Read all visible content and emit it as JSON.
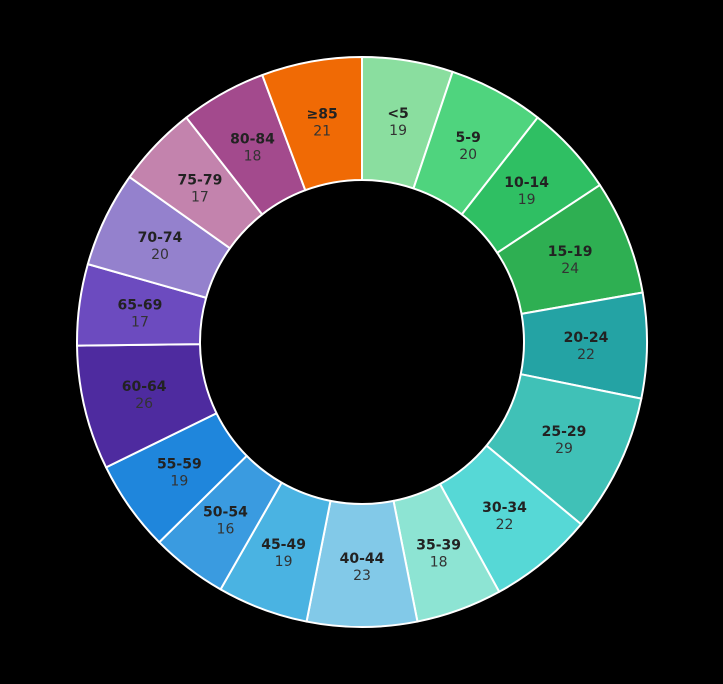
{
  "chart_data": {
    "type": "pie",
    "variant": "donut",
    "categories": [
      "<5",
      "5-9",
      "10-14",
      "15-19",
      "20-24",
      "25-29",
      "30-34",
      "35-39",
      "40-44",
      "45-49",
      "50-54",
      "55-59",
      "60-64",
      "65-69",
      "70-74",
      "75-79",
      "80-84",
      "≥85"
    ],
    "values": [
      19,
      20,
      19,
      24,
      22,
      29,
      22,
      18,
      23,
      19,
      16,
      19,
      26,
      17,
      20,
      17,
      18,
      21
    ],
    "colors": [
      "#8ade9f",
      "#4fd47e",
      "#2fbf63",
      "#2eaf52",
      "#24a3a4",
      "#40c1b7",
      "#56d8d6",
      "#8de4d3",
      "#82c9e8",
      "#4ab3e2",
      "#3a9be0",
      "#1f86dc",
      "#4e2b9f",
      "#6c4bbf",
      "#9481cd",
      "#c383ad",
      "#a34a8d",
      "#f06a05"
    ],
    "title": "",
    "legend": "none",
    "start_angle": "top",
    "direction": "clockwise"
  }
}
